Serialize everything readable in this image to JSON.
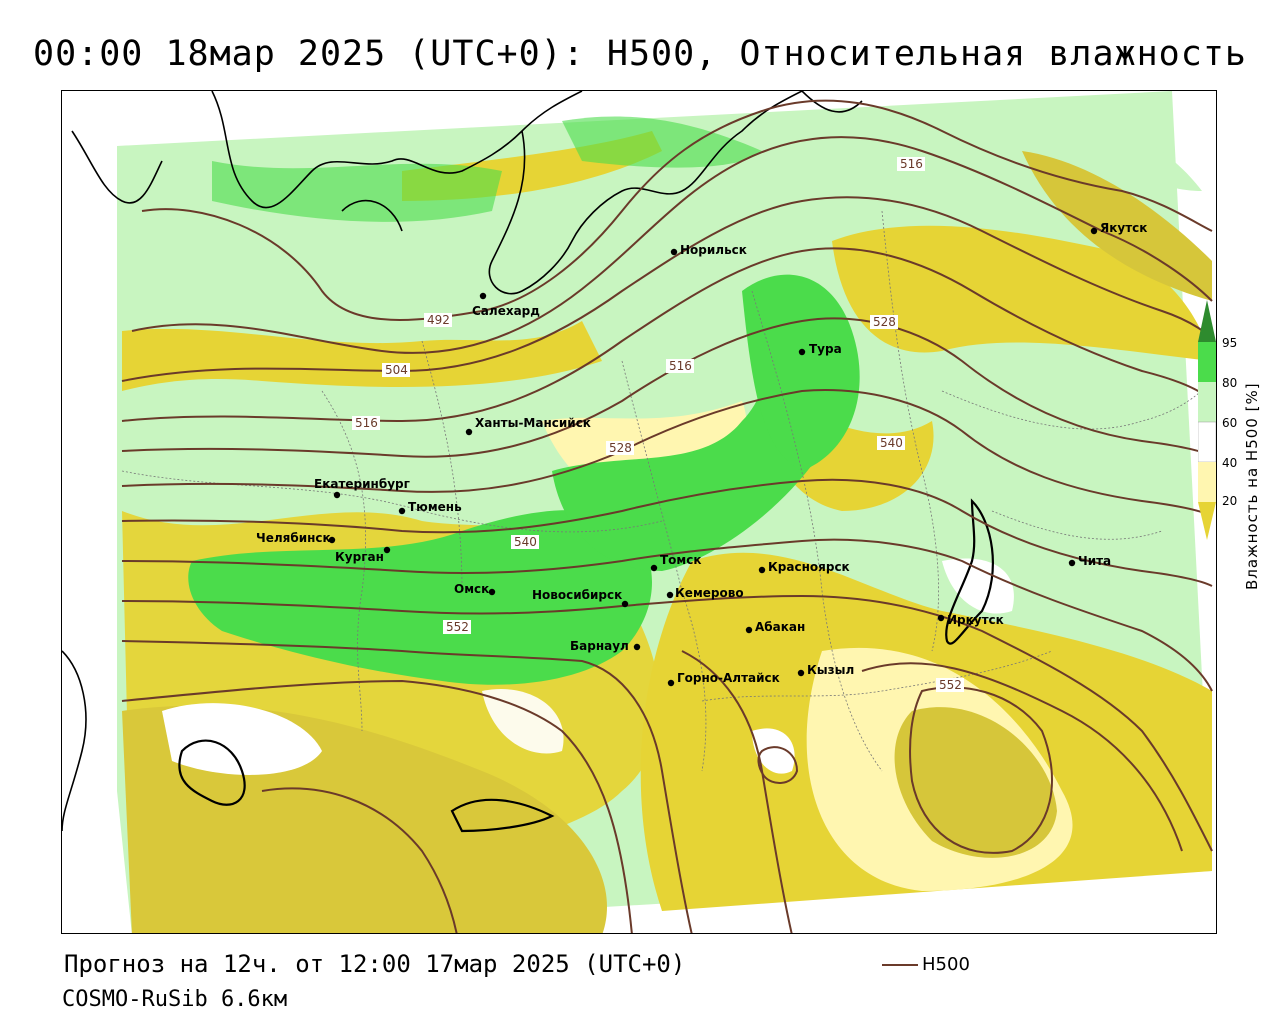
{
  "title": "00:00 18мар 2025 (UTC+0): H500, Относительная влажность",
  "footer": {
    "forecast": "Прогноз на 12ч. от 12:00 17мар 2025 (UTC+0)",
    "model": "COSMO-RuSib 6.6км",
    "legend_h500": "H500"
  },
  "colorbar": {
    "title": "Влажность на H500 [%]",
    "ticks": [
      "95",
      "80",
      "60",
      "40",
      "20"
    ],
    "colors": {
      "c95": "#2e8b2e",
      "c80": "#4bdc4b",
      "c60": "#c8f5c0",
      "c40": "#fff6b0",
      "c20": "#e6d435"
    }
  },
  "colors": {
    "contour": "#6a3a2a",
    "coast": "#000000",
    "humid_high": "#4bdc4b",
    "humid_mid": "#c8f5c0",
    "dry_light": "#fff6b0",
    "dry": "#d6c63a"
  },
  "contour_labels": [
    "492",
    "504",
    "516",
    "516",
    "516",
    "528",
    "528",
    "540",
    "540",
    "552",
    "552"
  ],
  "cities": [
    "Якутск",
    "Норильск",
    "Салехард",
    "Тура",
    "Ханты-Мансийск",
    "Екатеринбург",
    "Тюмень",
    "Челябинск",
    "Курган",
    "Омск",
    "Новосибирск",
    "Томск",
    "Кемерово",
    "Красноярск",
    "Абакан",
    "Барнаул",
    "Горно-Алтайск",
    "Кызыл",
    "Иркутск",
    "Чита"
  ]
}
